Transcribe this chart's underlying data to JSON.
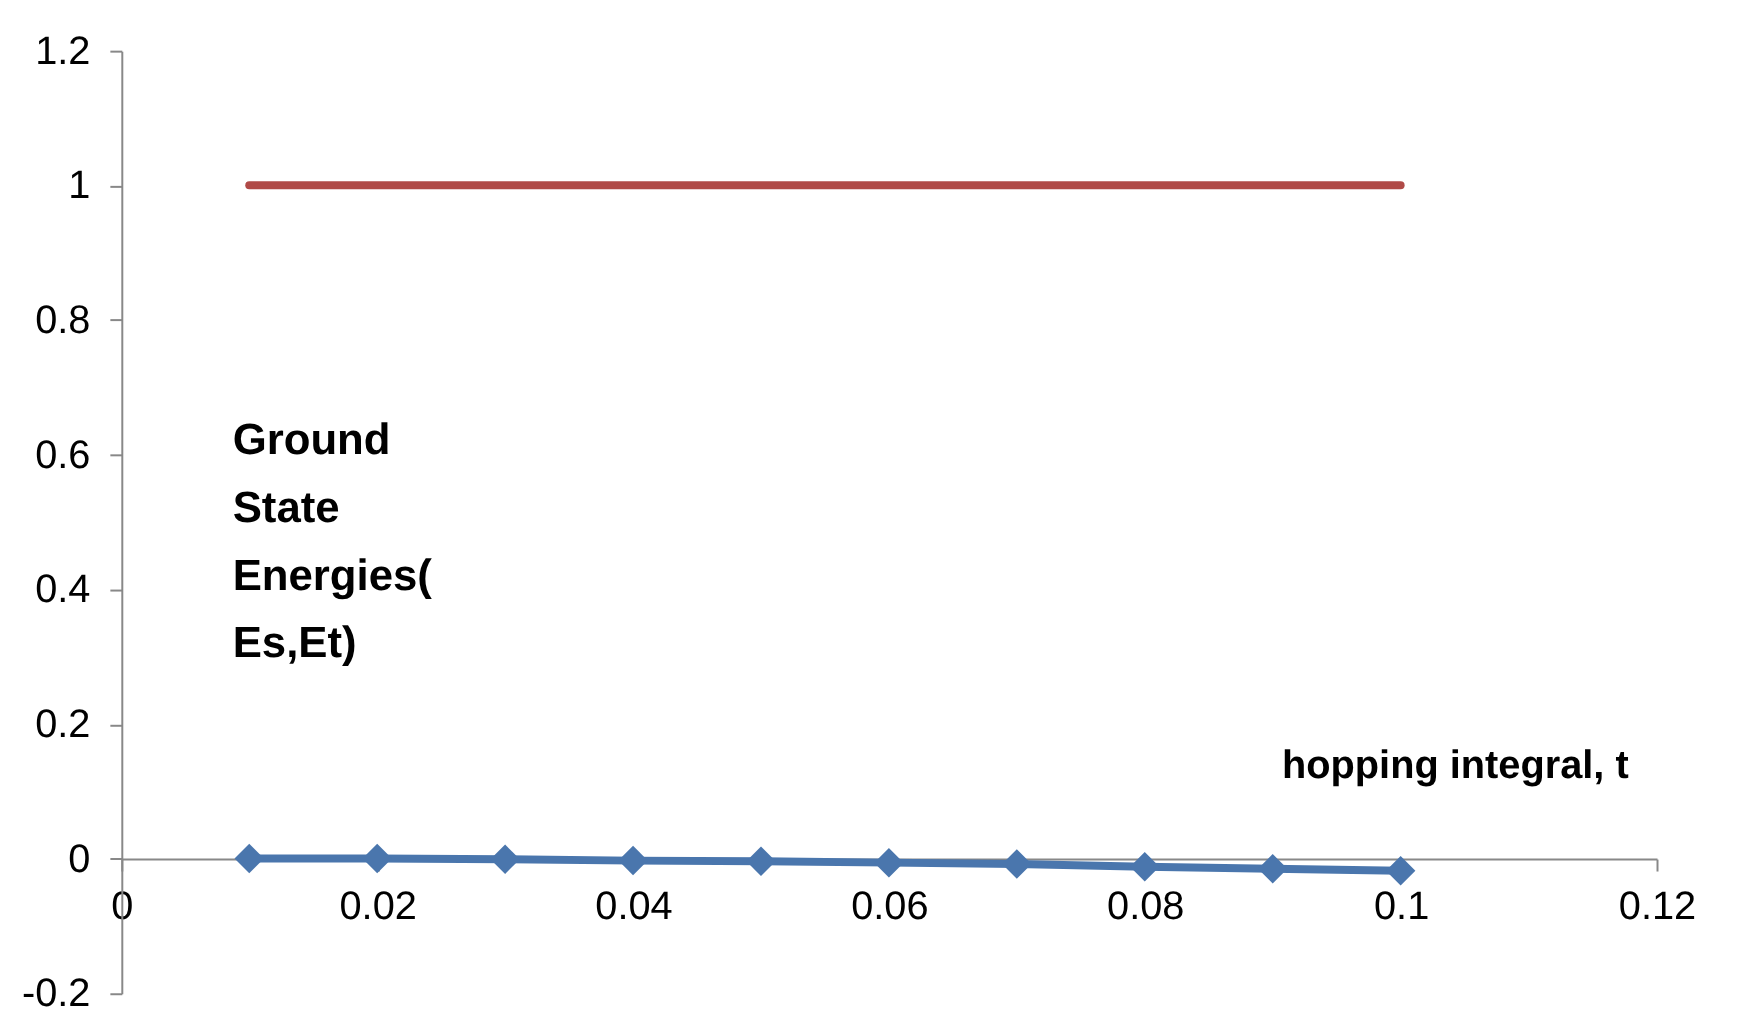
{
  "chart_data": {
    "type": "line",
    "xlabel": "hopping integral, t",
    "ylabel": "Ground State Energies( Es,Et)",
    "x": [
      0.01,
      0.02,
      0.03,
      0.04,
      0.05,
      0.06,
      0.07,
      0.08,
      0.09,
      0.1
    ],
    "series": [
      {
        "color": "#4a76ad",
        "marker": "diamond",
        "values": [
          0,
          0,
          -0.001,
          -0.003,
          -0.004,
          -0.006,
          -0.008,
          -0.012,
          -0.015,
          -0.018
        ]
      },
      {
        "color": "#b04a47",
        "marker": "none",
        "values": [
          1,
          1,
          1,
          1,
          1,
          1,
          1,
          1,
          1,
          1
        ]
      }
    ],
    "xlim": [
      0,
      0.12
    ],
    "xticks": [
      0,
      0.02,
      0.04,
      0.06,
      0.08,
      0.1,
      0.12
    ],
    "ylim": [
      -0.2,
      1.2
    ],
    "yticks": [
      -0.2,
      0,
      0.2,
      0.4,
      0.6,
      0.8,
      1,
      1.2
    ],
    "grid": false,
    "legend": false,
    "line_style": "solid"
  }
}
